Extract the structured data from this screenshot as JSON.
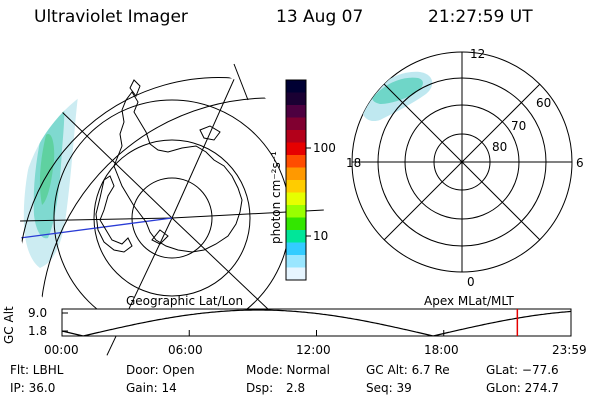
{
  "header": {
    "instrument": "Ultraviolet Imager",
    "date": "13 Aug 07",
    "time": "21:27:59 UT"
  },
  "colorbar": {
    "unit_label": "photon cm⁻²s⁻¹",
    "ticks": [
      "100",
      "10"
    ],
    "colors": [
      "#000033",
      "#1a0033",
      "#4d0040",
      "#800030",
      "#b3001a",
      "#e60000",
      "#ff4d00",
      "#ff9900",
      "#ffcc00",
      "#e6ff00",
      "#99ff00",
      "#33e600",
      "#00e699",
      "#33ccff",
      "#99e6ff",
      "#e6f5ff"
    ]
  },
  "left_map": {
    "label": "Geographic Lat/Lon"
  },
  "right_map": {
    "label": "Apex MLat/MLT",
    "mlt_labels": [
      "12",
      "18",
      "6",
      "0"
    ],
    "mlat_labels": [
      "60",
      "70",
      "80"
    ]
  },
  "timeline": {
    "ylabel": "GC Alt",
    "yticks": [
      "9.0",
      "1.8"
    ],
    "xticks": [
      "00:00",
      "06:00",
      "12:00",
      "18:00",
      "23:59"
    ],
    "current_time_hours": 21.47,
    "marker_color": "#e60000"
  },
  "info": {
    "flt": "Flt: LBHL",
    "door": "Door: Open",
    "mode": "Mode: Normal",
    "gc_alt": "GC Alt: 6.7 Re",
    "glat": "GLat: −77.6",
    "ip": "IP: 36.0",
    "gain": "Gain: 14",
    "dsp_label": "Dsp:",
    "dsp_value": "2.8",
    "seq": "Seq: 39",
    "glon": "GLon: 274.7"
  }
}
